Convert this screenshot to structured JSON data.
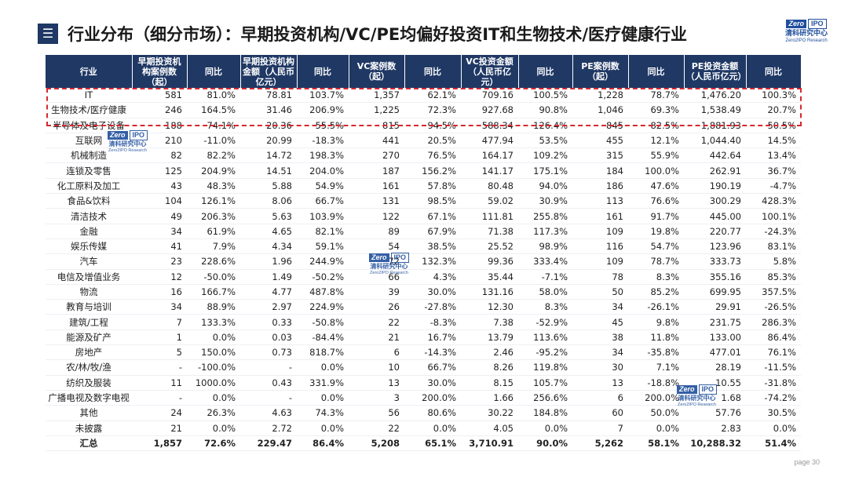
{
  "title": "行业分布（细分市场）：早期投资机构/VC/PE均偏好投资IT和生物技术/医疗健康行业",
  "menu_icon_glyph": "☰",
  "logo": {
    "mark_left": "Zero",
    "mark_right": "IPO",
    "name_cn": "清科研究中心",
    "name_en": "Zero2IPO Research"
  },
  "page_number": "page  30",
  "table": {
    "headers": [
      "行业",
      "早期投资机构案例数（起）",
      "同比",
      "早期投资机构金额（人民币亿元）",
      "同比",
      "VC案例数（起）",
      "同比",
      "VC投资金额（人民币亿元）",
      "同比",
      "PE案例数（起）",
      "同比",
      "PE投资金额（人民币亿元）",
      "同比"
    ],
    "rows": [
      [
        "IT",
        "581",
        "81.0%",
        "78.81",
        "103.7%",
        "1,357",
        "62.1%",
        "709.16",
        "100.5%",
        "1,228",
        "78.7%",
        "1,476.20",
        "100.3%"
      ],
      [
        "生物技术/医疗健康",
        "246",
        "164.5%",
        "31.46",
        "206.9%",
        "1,225",
        "72.3%",
        "927.68",
        "90.8%",
        "1,046",
        "69.3%",
        "1,538.49",
        "20.7%"
      ],
      [
        "半导体及电子设备",
        "188",
        "74.1%",
        "20.36",
        "55.5%",
        "815",
        "94.5%",
        "588.34",
        "126.4%",
        "845",
        "82.5%",
        "1,881.93",
        "50.5%"
      ],
      [
        "互联网",
        "210",
        "-11.0%",
        "20.99",
        "-18.3%",
        "441",
        "20.5%",
        "477.94",
        "53.5%",
        "455",
        "12.1%",
        "1,044.40",
        "14.5%"
      ],
      [
        "机械制造",
        "82",
        "82.2%",
        "14.72",
        "198.3%",
        "270",
        "76.5%",
        "164.17",
        "109.2%",
        "315",
        "55.9%",
        "442.64",
        "13.4%"
      ],
      [
        "连锁及零售",
        "125",
        "204.9%",
        "14.51",
        "204.0%",
        "187",
        "156.2%",
        "141.17",
        "175.1%",
        "184",
        "100.0%",
        "262.91",
        "36.7%"
      ],
      [
        "化工原料及加工",
        "43",
        "48.3%",
        "5.88",
        "54.9%",
        "161",
        "57.8%",
        "80.48",
        "94.0%",
        "186",
        "47.6%",
        "190.19",
        "-4.7%"
      ],
      [
        "食品&饮料",
        "104",
        "126.1%",
        "8.06",
        "66.7%",
        "131",
        "98.5%",
        "59.02",
        "30.9%",
        "113",
        "76.6%",
        "300.29",
        "428.3%"
      ],
      [
        "清洁技术",
        "49",
        "206.3%",
        "5.63",
        "103.9%",
        "122",
        "67.1%",
        "111.81",
        "255.8%",
        "161",
        "91.7%",
        "445.00",
        "100.1%"
      ],
      [
        "金融",
        "34",
        "61.9%",
        "4.65",
        "82.1%",
        "89",
        "67.9%",
        "71.38",
        "117.3%",
        "109",
        "19.8%",
        "220.77",
        "-24.3%"
      ],
      [
        "娱乐传媒",
        "41",
        "7.9%",
        "4.34",
        "59.1%",
        "54",
        "38.5%",
        "25.52",
        "98.9%",
        "116",
        "54.7%",
        "123.96",
        "83.1%"
      ],
      [
        "汽车",
        "23",
        "228.6%",
        "1.96",
        "244.9%",
        "72",
        "132.3%",
        "99.36",
        "333.4%",
        "109",
        "78.7%",
        "333.73",
        "5.8%"
      ],
      [
        "电信及增值业务",
        "12",
        "-50.0%",
        "1.49",
        "-50.2%",
        "66",
        "4.3%",
        "35.44",
        "-7.1%",
        "78",
        "8.3%",
        "355.16",
        "85.3%"
      ],
      [
        "物流",
        "16",
        "166.7%",
        "4.77",
        "487.8%",
        "39",
        "30.0%",
        "131.16",
        "58.0%",
        "50",
        "85.2%",
        "699.95",
        "357.5%"
      ],
      [
        "教育与培训",
        "34",
        "88.9%",
        "2.97",
        "224.9%",
        "26",
        "-27.8%",
        "12.30",
        "8.3%",
        "34",
        "-26.1%",
        "29.91",
        "-26.5%"
      ],
      [
        "建筑/工程",
        "7",
        "133.3%",
        "0.33",
        "-50.8%",
        "22",
        "-8.3%",
        "7.38",
        "-52.9%",
        "45",
        "9.8%",
        "231.75",
        "286.3%"
      ],
      [
        "能源及矿产",
        "1",
        "0.0%",
        "0.03",
        "-84.4%",
        "21",
        "16.7%",
        "13.79",
        "113.6%",
        "38",
        "11.8%",
        "133.00",
        "86.4%"
      ],
      [
        "房地产",
        "5",
        "150.0%",
        "0.73",
        "818.7%",
        "6",
        "-14.3%",
        "2.46",
        "-95.2%",
        "34",
        "-35.8%",
        "477.01",
        "76.1%"
      ],
      [
        "农/林/牧/渔",
        "-",
        "-100.0%",
        "-",
        "0.0%",
        "10",
        "66.7%",
        "8.26",
        "119.8%",
        "30",
        "7.1%",
        "28.19",
        "-11.5%"
      ],
      [
        "纺织及服装",
        "11",
        "1000.0%",
        "0.43",
        "331.9%",
        "13",
        "30.0%",
        "8.15",
        "105.7%",
        "13",
        "-18.8%",
        "10.55",
        "-31.8%"
      ],
      [
        "广播电视及数字电视",
        "-",
        "0.0%",
        "-",
        "0.0%",
        "3",
        "200.0%",
        "1.66",
        "256.6%",
        "6",
        "200.0%",
        "1.68",
        "-74.2%"
      ],
      [
        "其他",
        "24",
        "26.3%",
        "4.63",
        "74.3%",
        "56",
        "80.6%",
        "30.22",
        "184.8%",
        "60",
        "50.0%",
        "57.76",
        "30.5%"
      ],
      [
        "未披露",
        "21",
        "0.0%",
        "2.72",
        "0.0%",
        "22",
        "0.0%",
        "4.05",
        "0.0%",
        "7",
        "0.0%",
        "2.83",
        "0.0%"
      ]
    ],
    "total": [
      "汇总",
      "1,857",
      "72.6%",
      "229.47",
      "86.4%",
      "5,208",
      "65.1%",
      "3,710.91",
      "90.0%",
      "5,262",
      "58.1%",
      "10,288.32",
      "51.4%"
    ]
  }
}
